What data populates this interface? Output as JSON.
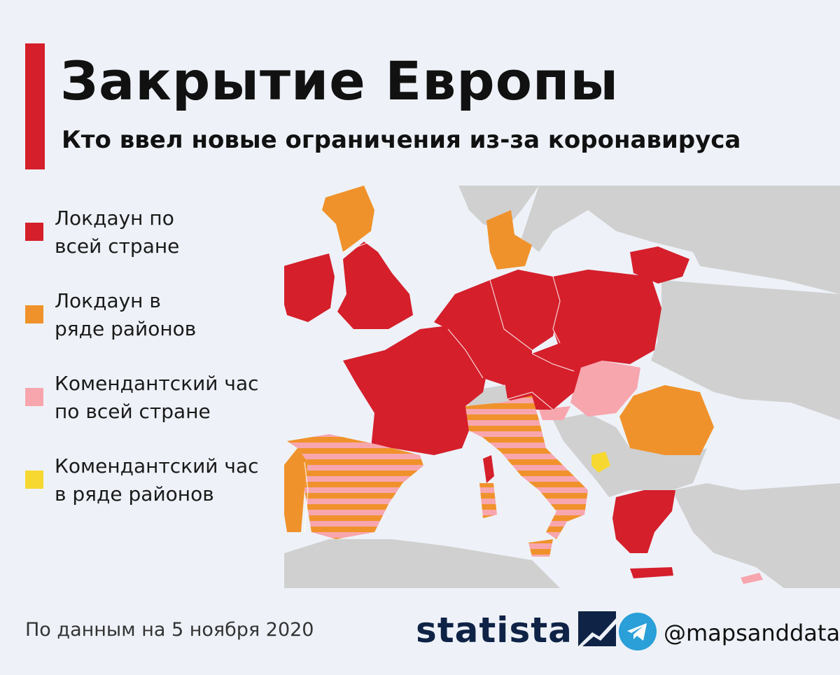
{
  "header": {
    "title": "Закрытие Европы",
    "subtitle": "Кто ввел новые ограничения из-за коронавируса"
  },
  "legend": [
    {
      "label": "Локдаун по всей стране",
      "line1": "Локдаун по",
      "line2": "всей стране",
      "color": "#d51f2b"
    },
    {
      "label": "Локдаун в ряде районов",
      "line1": "Локдаун в",
      "line2": "ряде районов",
      "color": "#f0922b"
    },
    {
      "label": "Комендантский час по всей стране",
      "line1": "Комендантский час",
      "line2": "по всей стране",
      "color": "#f8a6ae"
    },
    {
      "label": "Комендантский час в ряде районов",
      "line1": "Комендантский час",
      "line2": "в ряде районов",
      "color": "#f6d830"
    }
  ],
  "colors": {
    "national_lockdown": "#d51f2b",
    "regional_lockdown": "#f0922b",
    "national_curfew": "#f8a6ae",
    "regional_curfew": "#f6d830",
    "no_data": "#d0d0d0",
    "sea": "#eef2f8",
    "accent": "#d51f2b",
    "brand_navy": "#0f2346",
    "telegram_blue": "#2a9fd8"
  },
  "map_regions": {
    "national_lockdown": [
      "Ireland",
      "United Kingdom (England, Wales, N. Ireland)",
      "France",
      "Belgium",
      "Netherlands",
      "Germany",
      "Czechia",
      "Austria",
      "Poland",
      "Lithuania",
      "Greece",
      "Slovenia",
      "Corsica (France)"
    ],
    "regional_lockdown": [
      "Scotland",
      "Denmark",
      "Portugal",
      "Romania"
    ],
    "national_curfew": [
      "Hungary",
      "Slovakia",
      "Luxembourg",
      "Croatia (north)",
      "Cyprus"
    ],
    "regional_curfew": [
      "Montenegro"
    ],
    "national_curfew_and_regional_lockdown_striped": [
      "Spain",
      "Italy"
    ]
  },
  "footer": {
    "note": "По данным на 5 ноября 2020",
    "brand": "statista",
    "brand_icon": "statista-logo-icon",
    "telegram_icon": "telegram-icon",
    "telegram_handle": "@mapsanddata"
  }
}
